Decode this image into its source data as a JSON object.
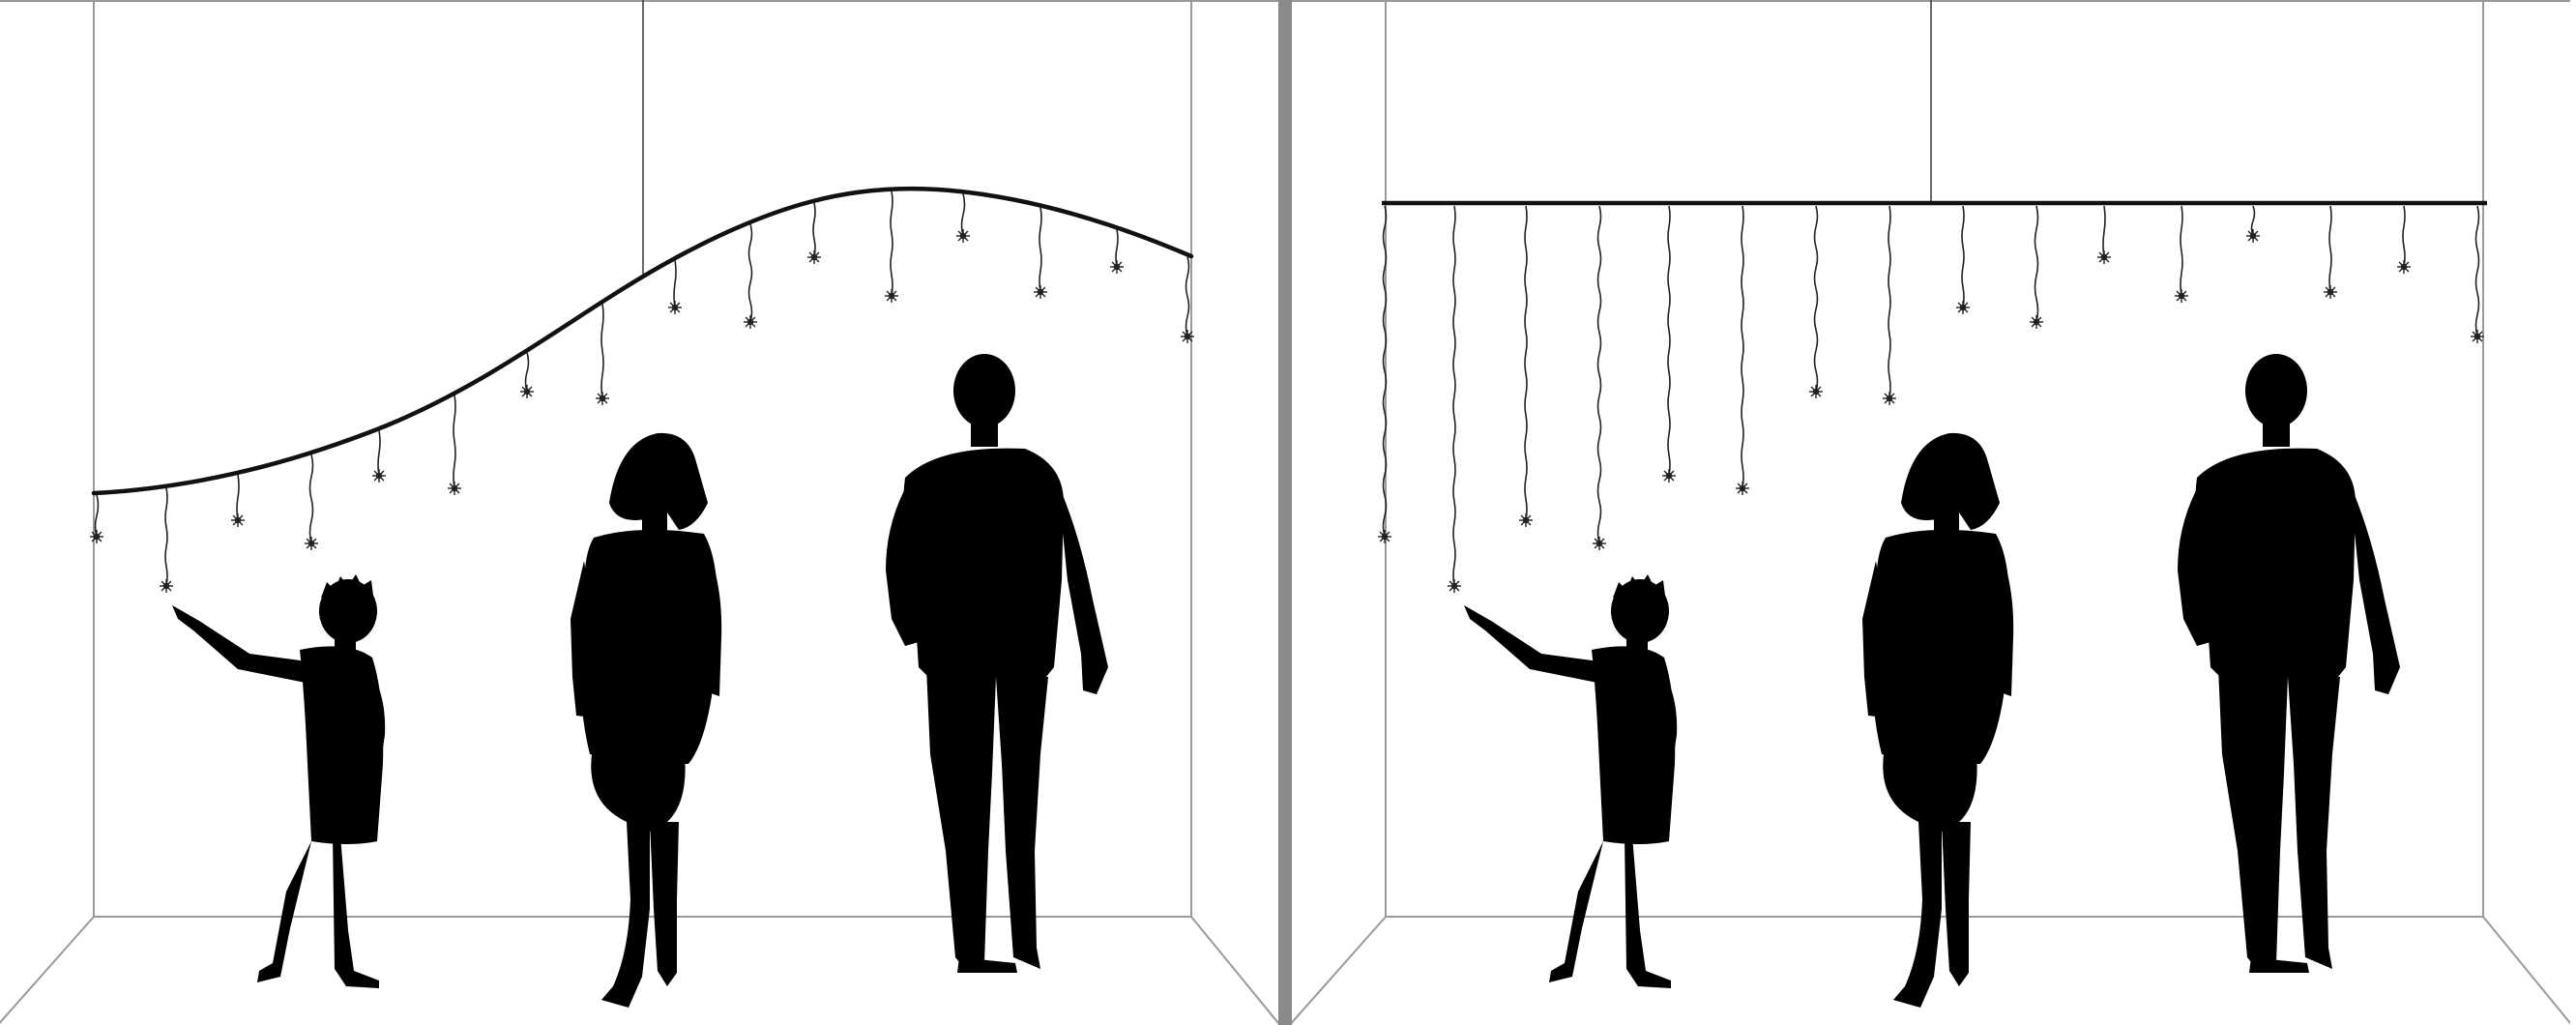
{
  "scene": {
    "background_color": "#ffffff",
    "divider_color": "#8a8a8a",
    "wall_line_color": "#9a9a9a",
    "rod_color": "#111111",
    "cable_color": "#222222",
    "silhouette_color": "#000000",
    "figures": [
      "child-pointing-silhouette",
      "woman-silhouette",
      "man-silhouette"
    ],
    "pendant_icon": "star-bulb-icon"
  },
  "panels": [
    {
      "name": "panel-curved-rail",
      "rail_shape": "wave",
      "pendant_count": 16
    },
    {
      "name": "panel-straight-rail",
      "rail_shape": "straight",
      "pendant_count": 16
    }
  ]
}
